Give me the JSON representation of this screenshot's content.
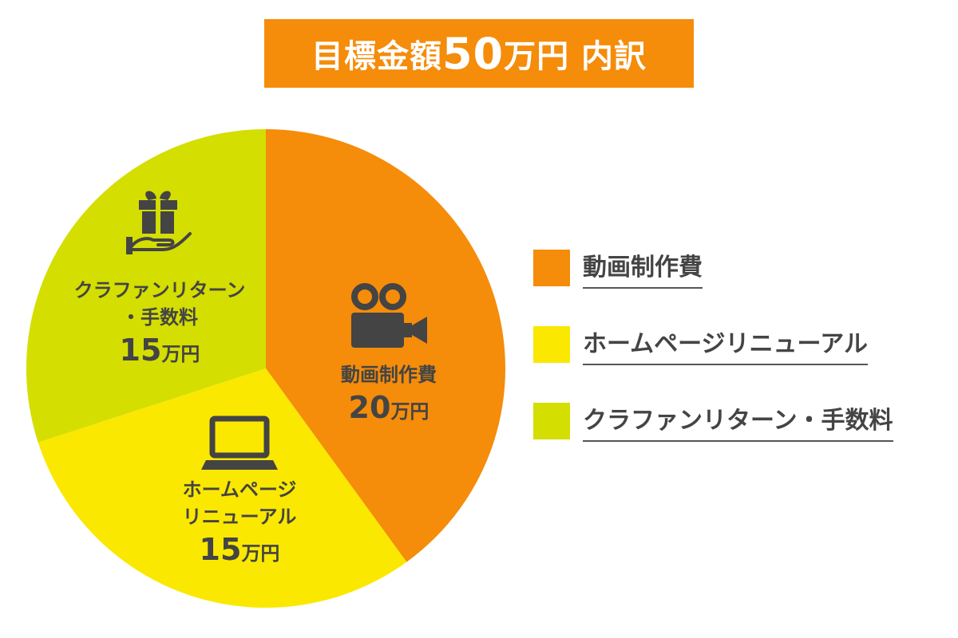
{
  "title": {
    "prefix": "目標金額",
    "amount": "50",
    "suffix": "万円 内訳"
  },
  "colors": {
    "title_bg": "#f58c0a",
    "text": "#444444"
  },
  "chart_data": {
    "type": "pie",
    "title": "目標金額50万円 内訳",
    "unit": "万円",
    "slices": [
      {
        "label": "動画制作費",
        "label_lines": [
          "動画制作費"
        ],
        "value": 20,
        "value_text": "20",
        "color": "#f58c0a",
        "icon": "video-camera-icon"
      },
      {
        "label": "ホームページリニューアル",
        "label_lines": [
          "ホームページ",
          "リニューアル"
        ],
        "value": 15,
        "value_text": "15",
        "color": "#fae800",
        "icon": "laptop-icon"
      },
      {
        "label": "クラファンリターン・手数料",
        "label_lines": [
          "クラファンリターン",
          "・手数料"
        ],
        "value": 15,
        "value_text": "15",
        "color": "#d4de00",
        "icon": "gift-hand-icon"
      }
    ],
    "legend": {
      "position": "right",
      "items": [
        "動画制作費",
        "ホームページリニューアル",
        "クラファンリターン・手数料"
      ]
    }
  }
}
